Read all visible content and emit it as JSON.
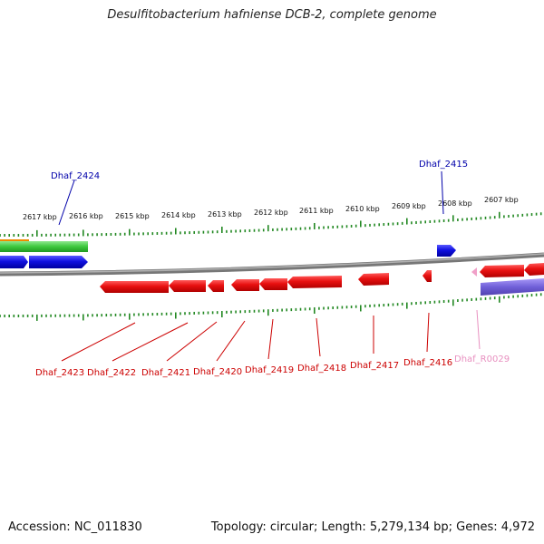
{
  "title": "Desulfitobacterium hafniense DCB-2, complete genome",
  "footer": {
    "accession": "Accession: NC_011830",
    "topology": "Topology: circular; Length: 5,279,134 bp; Genes: 4,972"
  },
  "scale_labels": [
    "2617 kbp",
    "2616 kbp",
    "2615 kbp",
    "2614 kbp",
    "2613 kbp",
    "2612 kbp",
    "2611 kbp",
    "2610 kbp",
    "2609 kbp",
    "2608 kbp",
    "2607 kbp"
  ],
  "gene_labels": {
    "top": [
      "Dhaf_2424",
      "Dhaf_2415"
    ],
    "bottom": [
      "Dhaf_2423",
      "Dhaf_2422",
      "Dhaf_2421",
      "Dhaf_2420",
      "Dhaf_2419",
      "Dhaf_2418",
      "Dhaf_2417",
      "Dhaf_2416",
      "Dhaf_R0029"
    ]
  },
  "colors": {
    "forward_gene": "#1010e0",
    "reverse_gene": "#e81010",
    "rna_gene": "#f0a0c8",
    "label_forward": "#0000aa",
    "label_reverse": "#cc0000",
    "label_rna": "#e890c0",
    "ticks": "#228822",
    "backbone": "#808080",
    "cog_green": "#3cc83c",
    "cog_orange": "#f08c00",
    "cog_purple": "#7060d8"
  }
}
